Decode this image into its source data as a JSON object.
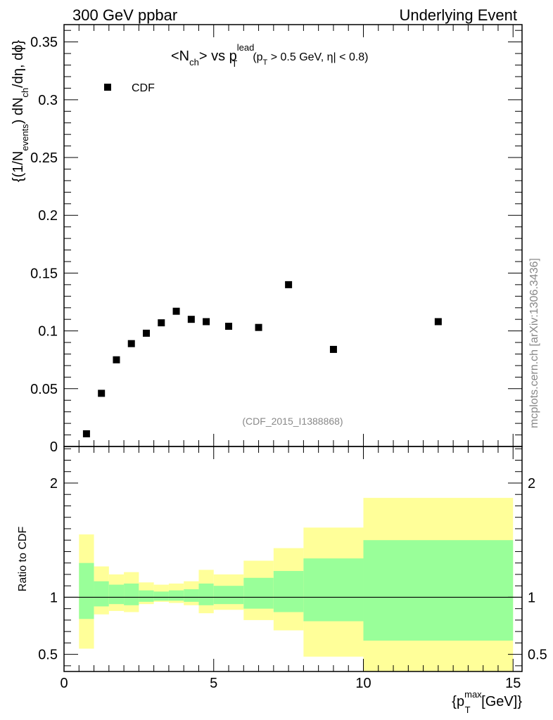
{
  "header": {
    "left": "300 GeV ppbar",
    "right": "Underlying Event"
  },
  "watermark": "mcplots.cern.ch [arXiv:1306.3436]",
  "chart_data": [
    {
      "type": "scatter",
      "title": "<N_ch> vs p_T^lead (p_T > 0.5 GeV, |η| < 0.8)",
      "title_parts": {
        "main": "<N",
        "main_sub": "ch",
        "main_mid": "> vs p",
        "main_sup": "lead",
        "main_sub2": "T",
        "cut1": "(p",
        "cut1_sub": "T",
        "cut2": " > 0.5 GeV, ",
        "cut_eta": "η",
        "cut3": "| < 0.8)"
      },
      "ylabel_parts": {
        "a": "{(1/N",
        "a_sub": "events",
        "b": ") dN",
        "b_sub": "ch",
        "c": "/dη, dϕ}"
      },
      "xlim": [
        0,
        15.3
      ],
      "ylim": [
        0,
        0.365
      ],
      "yticks": [
        0,
        0.05,
        0.1,
        0.15,
        0.2,
        0.25,
        0.3,
        0.35
      ],
      "ytick_labels": [
        "0",
        "0.05",
        "0.1",
        "0.15",
        "0.2",
        "0.25",
        "0.3",
        "0.35"
      ],
      "legend": {
        "label": "CDF",
        "position": "top-left"
      },
      "analysis_tag": "(CDF_2015_I1388868)",
      "series": [
        {
          "name": "CDF",
          "x": [
            0.75,
            1.25,
            1.75,
            2.25,
            2.75,
            3.25,
            3.75,
            4.25,
            4.75,
            5.5,
            6.5,
            7.5,
            9.0,
            12.5
          ],
          "y": [
            0.011,
            0.046,
            0.075,
            0.089,
            0.098,
            0.107,
            0.117,
            0.11,
            0.108,
            0.104,
            0.103,
            0.14,
            0.084,
            0.108
          ]
        }
      ]
    },
    {
      "type": "area",
      "ylabel": "Ratio to CDF",
      "xlabel_parts": {
        "a": "{p",
        "sup": "max",
        "sub": "T",
        "b": " [GeV]}"
      },
      "xlim": [
        0,
        15.3
      ],
      "ylim": [
        0.35,
        2.32
      ],
      "xticks": [
        0,
        5,
        10,
        15
      ],
      "xtick_labels": [
        "0",
        "5",
        "10",
        "15"
      ],
      "yticks": [
        0.5,
        1,
        2
      ],
      "ytick_labels": [
        "0.5",
        "1",
        "2"
      ],
      "reference_line": 1,
      "bins": [
        {
          "lo": 0.5,
          "hi": 1.0,
          "yellow": [
            0.55,
            1.55
          ],
          "green": [
            0.81,
            1.3
          ]
        },
        {
          "lo": 1.0,
          "hi": 1.5,
          "yellow": [
            0.85,
            1.27
          ],
          "green": [
            0.92,
            1.14
          ]
        },
        {
          "lo": 1.5,
          "hi": 2.0,
          "yellow": [
            0.88,
            1.2
          ],
          "green": [
            0.94,
            1.11
          ]
        },
        {
          "lo": 2.0,
          "hi": 2.5,
          "yellow": [
            0.87,
            1.22
          ],
          "green": [
            0.93,
            1.12
          ]
        },
        {
          "lo": 2.5,
          "hi": 3.0,
          "yellow": [
            0.94,
            1.13
          ],
          "green": [
            0.96,
            1.06
          ]
        },
        {
          "lo": 3.0,
          "hi": 3.5,
          "yellow": [
            0.96,
            1.11
          ],
          "green": [
            0.97,
            1.05
          ]
        },
        {
          "lo": 3.5,
          "hi": 4.0,
          "yellow": [
            0.95,
            1.12
          ],
          "green": [
            0.97,
            1.06
          ]
        },
        {
          "lo": 4.0,
          "hi": 4.5,
          "yellow": [
            0.93,
            1.14
          ],
          "green": [
            0.96,
            1.07
          ]
        },
        {
          "lo": 4.5,
          "hi": 5.0,
          "yellow": [
            0.86,
            1.24
          ],
          "green": [
            0.93,
            1.12
          ]
        },
        {
          "lo": 5.0,
          "hi": 6.0,
          "yellow": [
            0.89,
            1.2
          ],
          "green": [
            0.94,
            1.1
          ]
        },
        {
          "lo": 6.0,
          "hi": 7.0,
          "yellow": [
            0.8,
            1.32
          ],
          "green": [
            0.9,
            1.17
          ]
        },
        {
          "lo": 7.0,
          "hi": 8.0,
          "yellow": [
            0.71,
            1.43
          ],
          "green": [
            0.87,
            1.23
          ]
        },
        {
          "lo": 8.0,
          "hi": 10.0,
          "yellow": [
            0.48,
            1.61
          ],
          "green": [
            0.79,
            1.34
          ]
        },
        {
          "lo": 10.0,
          "hi": 15.0,
          "yellow": [
            0.35,
            1.87
          ],
          "green": [
            0.62,
            1.5
          ]
        }
      ]
    }
  ]
}
